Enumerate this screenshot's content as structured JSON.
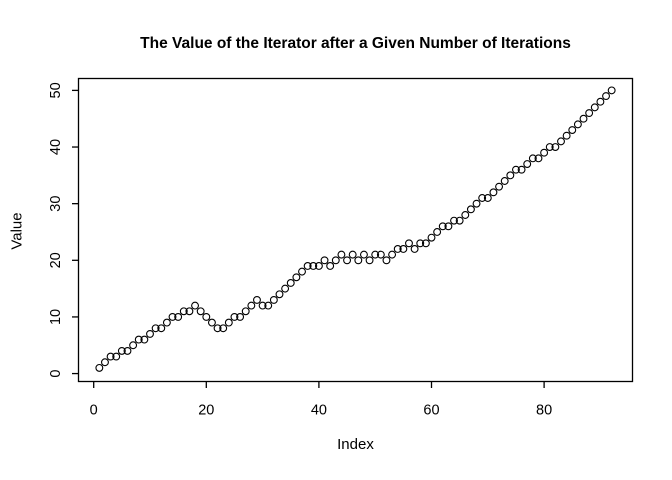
{
  "chart_data": {
    "type": "scatter",
    "title": "The Value of the Iterator after a Given Number of Iterations",
    "xlabel": "Index",
    "ylabel": "Value",
    "x_start": 1,
    "values": [
      1,
      2,
      3,
      3,
      4,
      4,
      5,
      6,
      6,
      7,
      8,
      8,
      9,
      10,
      10,
      11,
      11,
      12,
      11,
      10,
      9,
      8,
      8,
      9,
      10,
      10,
      11,
      12,
      13,
      12,
      12,
      13,
      14,
      15,
      16,
      17,
      18,
      19,
      19,
      19,
      20,
      19,
      20,
      21,
      20,
      21,
      20,
      21,
      20,
      21,
      21,
      20,
      21,
      22,
      22,
      23,
      22,
      23,
      23,
      24,
      25,
      26,
      26,
      27,
      27,
      28,
      29,
      30,
      31,
      31,
      32,
      33,
      34,
      35,
      36,
      36,
      37,
      38,
      38,
      39,
      40,
      40,
      41,
      42,
      43,
      44,
      45,
      46,
      47,
      48,
      49,
      50
    ],
    "x_ticks": [
      0,
      20,
      40,
      60,
      80
    ],
    "y_ticks": [
      0,
      10,
      20,
      30,
      40,
      50
    ],
    "xlim": [
      -2.7,
      95.7
    ],
    "ylim": [
      -1.4,
      52.1
    ],
    "marker": "open-circle",
    "marker_color": "#000000",
    "axis_color": "#000000",
    "background": "#ffffff",
    "grid": false,
    "legend": "none"
  }
}
